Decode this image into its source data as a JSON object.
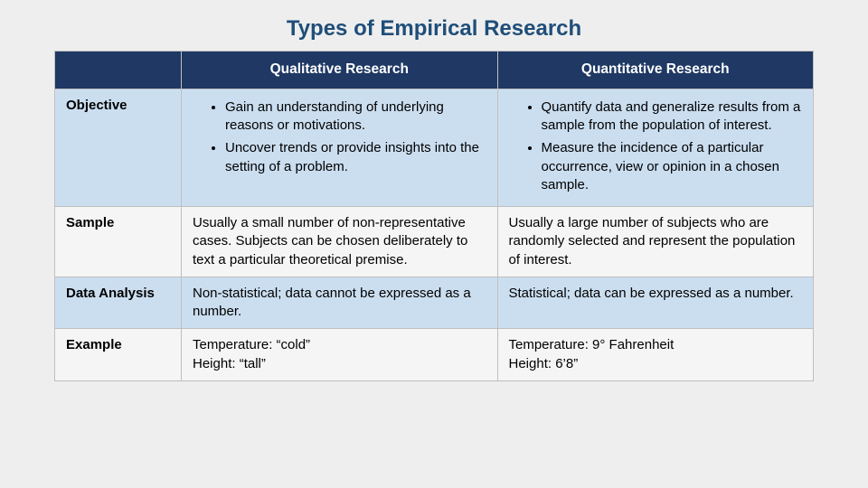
{
  "title": "Types of Empirical Research",
  "title_color": "#1f4e79",
  "header_bg": "#1f3864",
  "header_text_color": "#ffffff",
  "alt_row_bg": "#cbdef0",
  "plain_row_bg": "#f5f5f5",
  "border_color": "#bfbfbf",
  "columns": {
    "qual": "Qualitative Research",
    "quant": "Quantitative Research"
  },
  "rows": {
    "objective": {
      "label": "Objective",
      "qual": [
        "Gain an understanding of underlying reasons or motivations.",
        "Uncover trends or provide insights into the setting of a problem."
      ],
      "quant": [
        "Quantify data and generalize results from a sample from the population of interest.",
        "Measure the incidence of a particular occurrence, view or opinion in a chosen sample."
      ]
    },
    "sample": {
      "label": "Sample",
      "qual": "Usually a small number of non-representative cases. Subjects can be chosen deliberately to text a particular theoretical premise.",
      "quant": "Usually a large number of subjects who are randomly selected and represent the population of interest."
    },
    "dataAnalysis": {
      "label": "Data Analysis",
      "qual": "Non-statistical; data cannot be expressed as a number.",
      "quant": "Statistical; data can be expressed as a number."
    },
    "example": {
      "label": "Example",
      "qual": "Temperature: “cold”\nHeight: “tall”",
      "quant": "Temperature: 9° Fahrenheit\nHeight: 6’8”"
    }
  }
}
